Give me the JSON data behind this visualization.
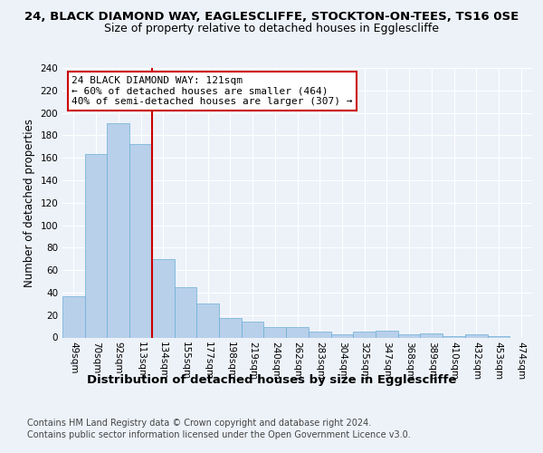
{
  "title1": "24, BLACK DIAMOND WAY, EAGLESCLIFFE, STOCKTON-ON-TEES, TS16 0SE",
  "title2": "Size of property relative to detached houses in Egglescliffe",
  "xlabel": "Distribution of detached houses by size in Egglescliffe",
  "ylabel": "Number of detached properties",
  "bar_values": [
    37,
    163,
    191,
    172,
    70,
    45,
    30,
    17,
    14,
    9,
    9,
    5,
    3,
    5,
    6,
    3,
    4,
    1,
    3,
    1,
    0
  ],
  "bar_labels": [
    "49sqm",
    "70sqm",
    "92sqm",
    "113sqm",
    "134sqm",
    "155sqm",
    "177sqm",
    "198sqm",
    "219sqm",
    "240sqm",
    "262sqm",
    "283sqm",
    "304sqm",
    "325sqm",
    "347sqm",
    "368sqm",
    "389sqm",
    "410sqm",
    "432sqm",
    "453sqm",
    "474sqm"
  ],
  "bar_color": "#b8d0ea",
  "bar_edge_color": "#6baed6",
  "bar_width": 1.0,
  "red_line_x": 3.5,
  "red_line_color": "#cc0000",
  "annotation_text": "24 BLACK DIAMOND WAY: 121sqm\n← 60% of detached houses are smaller (464)\n40% of semi-detached houses are larger (307) →",
  "annotation_box_color": "#ffffff",
  "annotation_box_edge_color": "#cc0000",
  "ylim": [
    0,
    240
  ],
  "yticks": [
    0,
    20,
    40,
    60,
    80,
    100,
    120,
    140,
    160,
    180,
    200,
    220,
    240
  ],
  "footnote1": "Contains HM Land Registry data © Crown copyright and database right 2024.",
  "footnote2": "Contains public sector information licensed under the Open Government Licence v3.0.",
  "bg_color": "#edf2f9",
  "plot_bg_color": "#edf2f9",
  "title1_fontsize": 9.5,
  "title2_fontsize": 9.0,
  "xlabel_fontsize": 9.5,
  "ylabel_fontsize": 8.5,
  "tick_fontsize": 7.5,
  "footnote_fontsize": 7.0,
  "annotation_fontsize": 8.0
}
